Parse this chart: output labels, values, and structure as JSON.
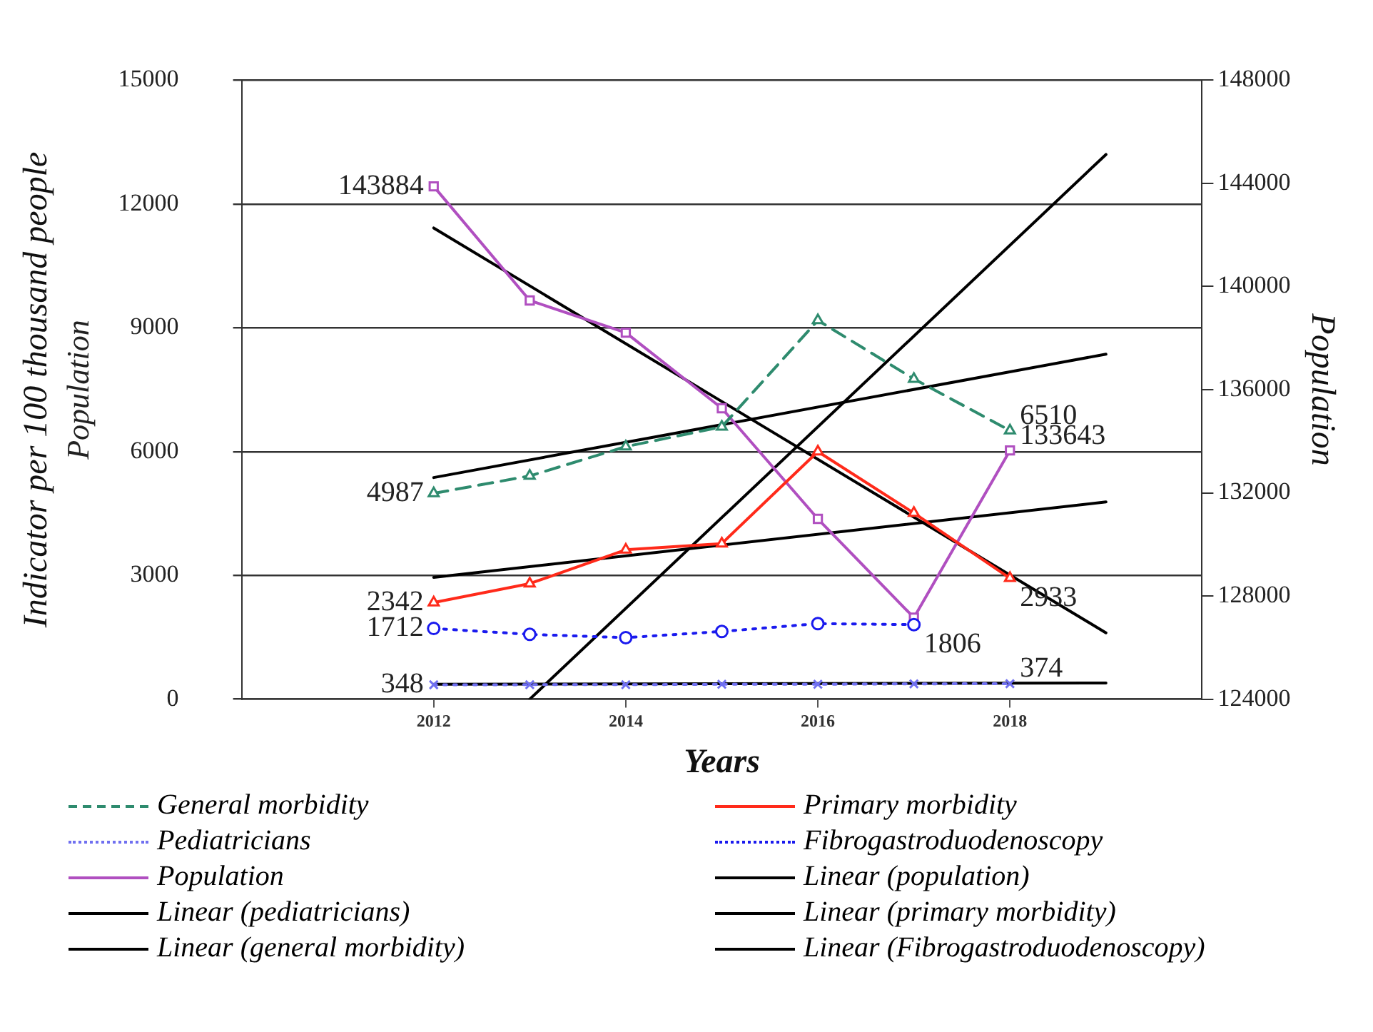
{
  "chart_data": {
    "type": "line",
    "xlabel": "Years",
    "ylabel": "Indicator per 100 thousand people",
    "y2label": "Population",
    "annotations": [
      "Population"
    ],
    "xlim": [
      2010,
      2020
    ],
    "xticks": [
      2012,
      2014,
      2016,
      2018
    ],
    "ylim": [
      0,
      15000
    ],
    "yticks": [
      0,
      3000,
      6000,
      9000,
      12000,
      15000
    ],
    "y2lim": [
      124000,
      148000
    ],
    "y2ticks": [
      124000,
      128000,
      132000,
      136000,
      140000,
      144000,
      148000
    ],
    "grid": "y",
    "legend": "bottom",
    "x": [
      2012,
      2013,
      2014,
      2015,
      2016,
      2017,
      2018
    ],
    "series": [
      {
        "name": "General morbidity",
        "color": "#2e8b6e",
        "marker": "triangle",
        "line_style": "dashed",
        "values": [
          4987,
          5410,
          6120,
          6600,
          9180,
          7760,
          6510
        ],
        "value_labels": [
          "4987",
          null,
          null,
          null,
          null,
          null,
          "6510"
        ]
      },
      {
        "name": "Primary morbidity",
        "color": "#ff2a1a",
        "marker": "triangle",
        "line_style": "solid",
        "values": [
          2342,
          2800,
          3620,
          3770,
          6000,
          4510,
          2933
        ],
        "value_labels": [
          "2342",
          null,
          null,
          null,
          null,
          null,
          "2933"
        ]
      },
      {
        "name": "Pediatricians",
        "color": "#7070f0",
        "marker": "cross",
        "line_style": "dotted",
        "values": [
          348,
          350,
          350,
          360,
          360,
          370,
          374
        ],
        "value_labels": [
          "348",
          null,
          null,
          null,
          null,
          null,
          "374"
        ]
      },
      {
        "name": "Fibrogastroduodenoscopy",
        "color": "#1a1aee",
        "marker": "circle",
        "line_style": "dotted",
        "values": [
          1712,
          1570,
          1490,
          1640,
          1830,
          1806,
          null
        ],
        "value_labels": [
          "1712",
          null,
          null,
          null,
          null,
          "1806",
          null
        ]
      },
      {
        "name": "Population",
        "color": "#b04fc0",
        "marker": "square",
        "line_style": "solid",
        "axis": "y2",
        "values": [
          143884,
          139460,
          138210,
          135280,
          130990,
          127160,
          133643
        ],
        "value_labels": [
          "143884",
          null,
          null,
          null,
          null,
          null,
          "133643"
        ]
      },
      {
        "name": "Linear (population)",
        "color": "#000000",
        "marker": "none",
        "line_style": "solid",
        "axis": "y2",
        "x": [
          2012,
          2019
        ],
        "values": [
          142270,
          126570
        ]
      },
      {
        "name": "Linear (pediatricians)",
        "color": "#000000",
        "marker": "none",
        "line_style": "solid",
        "x": [
          2012,
          2019
        ],
        "values": [
          360,
          390
        ]
      },
      {
        "name": "Linear (primary morbidity)",
        "color": "#000000",
        "marker": "none",
        "line_style": "solid",
        "x": [
          2012,
          2019
        ],
        "values": [
          2950,
          4780
        ]
      },
      {
        "name": "Linear (general morbidity)",
        "color": "#000000",
        "marker": "none",
        "line_style": "solid",
        "x": [
          2012,
          2019
        ],
        "values": [
          5370,
          8360
        ]
      },
      {
        "name": "Linear (Fibrogastroduodenoscopy)",
        "color": "#000000",
        "marker": "none",
        "line_style": "solid",
        "x": [
          2013,
          2019
        ],
        "values": [
          0,
          13200
        ]
      }
    ]
  }
}
